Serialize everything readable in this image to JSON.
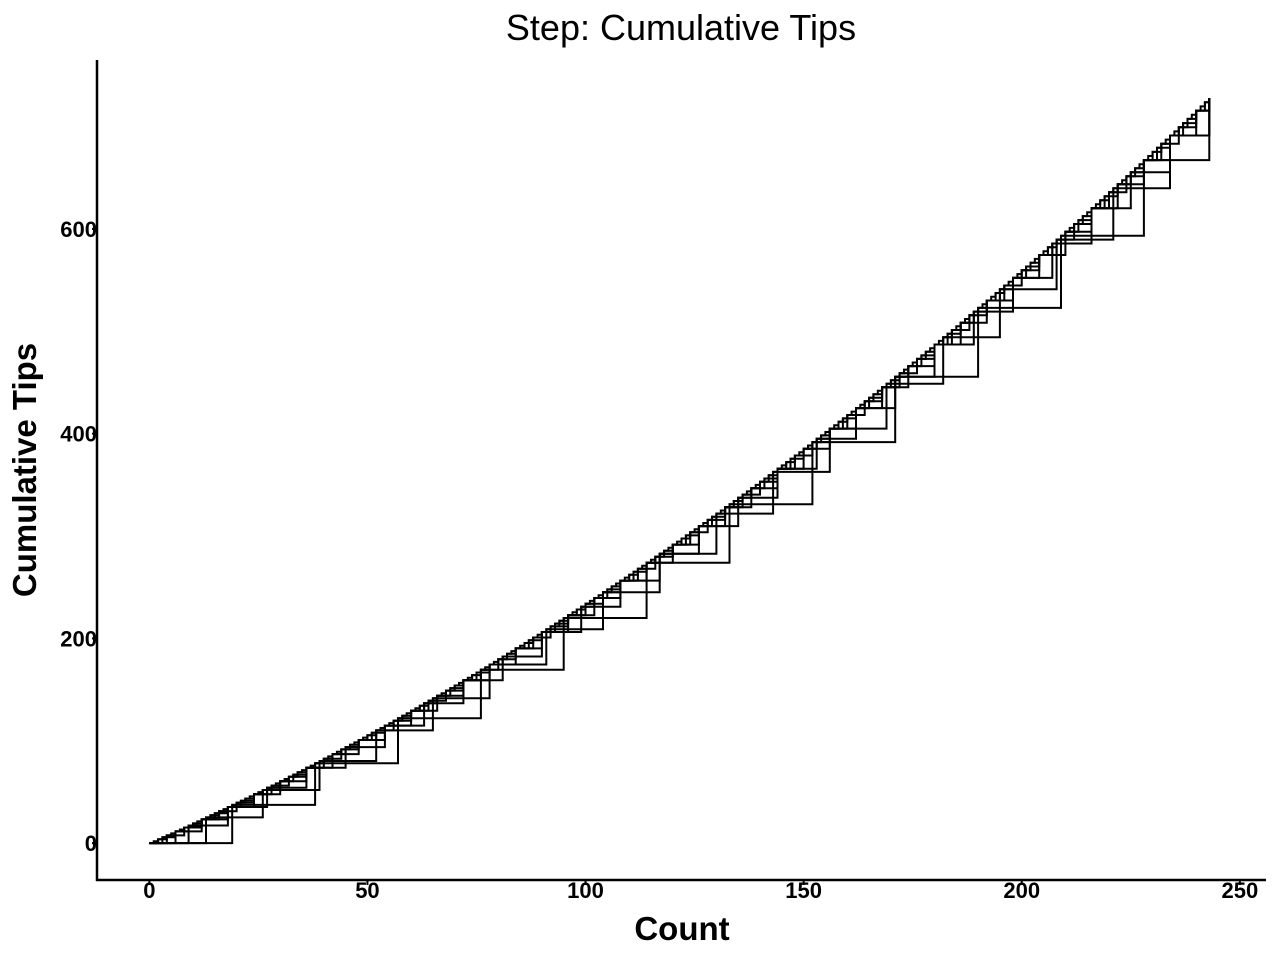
{
  "chart_data": {
    "type": "line",
    "step": true,
    "title": "Step: Cumulative Tips",
    "xlabel": "Count",
    "ylabel": "Cumulative Tips",
    "xlim": [
      -12,
      256
    ],
    "ylim": [
      -36,
      765
    ],
    "xticks": [
      0,
      50,
      100,
      150,
      200,
      250
    ],
    "yticks": [
      0,
      200,
      400,
      600
    ],
    "grid": false,
    "legend": "none",
    "line_color": "#000000",
    "step_model": {
      "n_points": 244,
      "increment_base": 1.7,
      "increment_growth": 0.0083,
      "max_cumulative": 732
    },
    "series": [
      {
        "step_every": 1
      },
      {
        "step_every": 2
      },
      {
        "step_every": 3
      },
      {
        "step_every": 4
      },
      {
        "step_every": 6
      },
      {
        "step_every": 9
      },
      {
        "step_every": 13
      },
      {
        "step_every": 19
      }
    ]
  }
}
